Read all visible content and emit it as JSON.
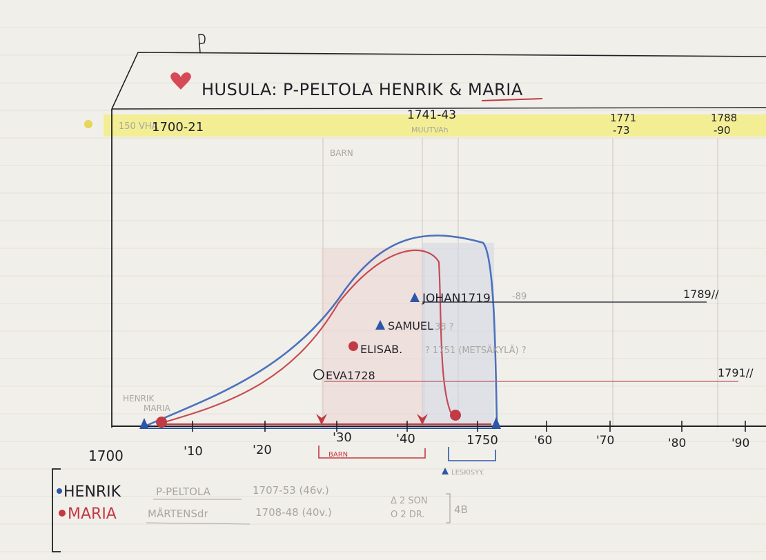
{
  "title": "HUSULA: P-PELTOLA HENRIK & MARIA",
  "header_period_labels": {
    "left_faint": "150 VHA",
    "p1": "1700-21",
    "p2": "1741-43",
    "p2_faint": "MUUTVAh",
    "p3a": "1771",
    "p3b": "-73",
    "p4a": "1788",
    "p4b": "-90"
  },
  "timeline": {
    "axis_start_label": "1700",
    "ticks": [
      "'10",
      "'20",
      "'30",
      "'40",
      "1750",
      "'60",
      "'70",
      "'80",
      "'90"
    ],
    "barn_faint_top": "BARN",
    "barn_bottom": "BARN",
    "leskisyy": "LESKISYY.",
    "origin_labels": [
      "HENRIK",
      "MARIA"
    ]
  },
  "children": [
    {
      "label": "JOHAN1719",
      "after": "-89",
      "end": "1789//"
    },
    {
      "label": "SAMUEL",
      "after": "38 ?",
      "end": ""
    },
    {
      "label": "ELISAB.",
      "after": "? 1751 (METSÄKYLÄ) ?",
      "end": ""
    },
    {
      "label": "EVA1728",
      "after": "",
      "end": "1791//"
    }
  ],
  "legend": {
    "henrik_name": "HENRIK",
    "henrik_surname": "P-PELTOLA",
    "henrik_dates": "1707-53 (46v.)",
    "maria_name": "MARIA",
    "maria_surname": "MÅRTENSdr",
    "maria_dates": "1708-48 (40v.)",
    "sons": "Δ 2 SON",
    "daughters": "O 2 DR.",
    "years": "4B"
  },
  "colors": {
    "paper": "#f1efe9",
    "ink": "#1f1f26",
    "red": "#c23a44",
    "blue": "#2e56a8",
    "highlight": "#f4ee7e",
    "pink_fill": "#eacfcd",
    "blue_fill": "#cfd6e6"
  }
}
